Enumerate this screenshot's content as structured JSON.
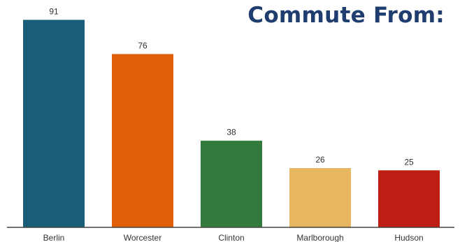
{
  "chart_data": {
    "type": "bar",
    "title": "Commute From:",
    "categories": [
      "Berlin",
      "Worcester",
      "Clinton",
      "Marlborough",
      "Hudson"
    ],
    "values": [
      91,
      76,
      38,
      26,
      25
    ],
    "colors": [
      "#195e78",
      "#e05f0a",
      "#327b3d",
      "#e8b561",
      "#be1e14"
    ],
    "data_labels": [
      "91",
      "76",
      "38",
      "26",
      "25"
    ],
    "title_color": "#1f3d6e",
    "ylim": [
      0,
      100
    ],
    "grid": false,
    "legend": "none"
  }
}
